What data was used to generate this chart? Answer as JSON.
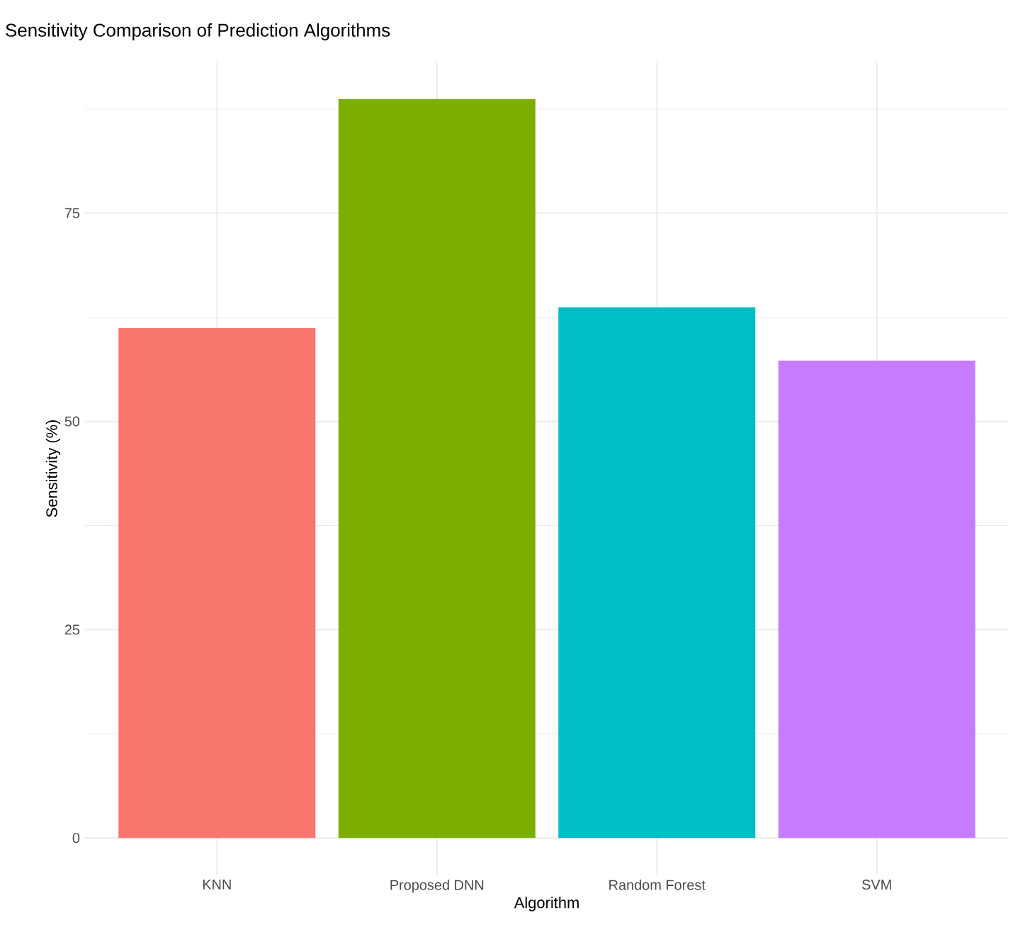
{
  "chart_data": {
    "type": "bar",
    "title": "Sensitivity Comparison of Prediction Algorithms",
    "xlabel": "Algorithm",
    "ylabel": "Sensitivity (%)",
    "categories": [
      "KNN",
      "Proposed DNN",
      "Random Forest",
      "SVM"
    ],
    "values": [
      61.2,
      88.7,
      63.7,
      57.3
    ],
    "colors": [
      "#f8766d",
      "#7cae00",
      "#00bfc4",
      "#c77cff"
    ],
    "ylim": [
      -4.4,
      93.1
    ],
    "yticks": [
      0,
      25,
      50,
      75
    ],
    "grid": true
  }
}
